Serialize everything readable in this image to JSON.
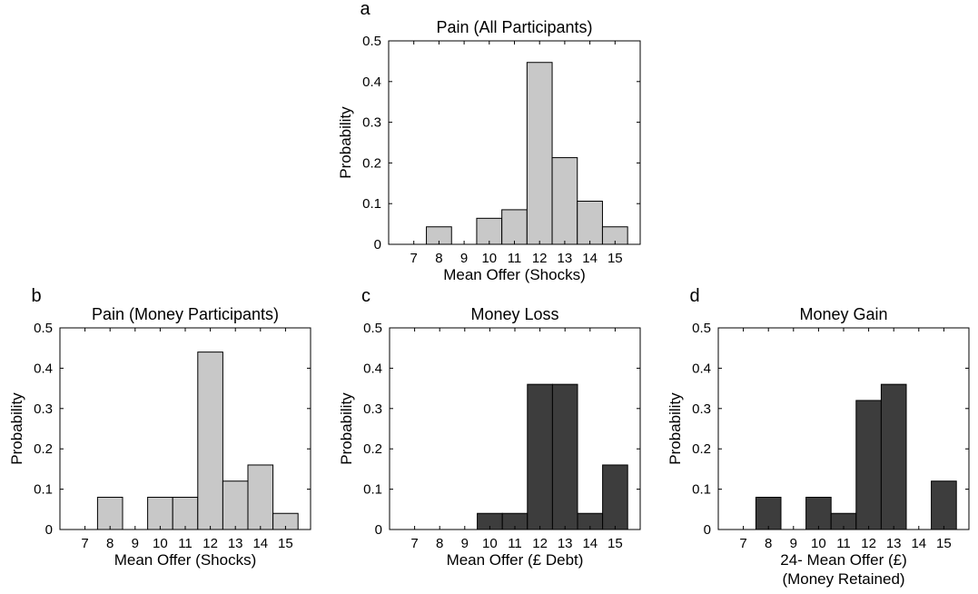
{
  "chart_data": [
    {
      "panel_letter": "a",
      "type": "bar",
      "title": "Pain (All Participants)",
      "xlabel": [
        "Mean Offer (Shocks)"
      ],
      "ylabel": "Probability",
      "categories": [
        "7",
        "8",
        "9",
        "10",
        "11",
        "12",
        "13",
        "14",
        "15"
      ],
      "values": [
        0,
        0.043,
        0,
        0.064,
        0.085,
        0.447,
        0.213,
        0.106,
        0.043
      ],
      "ylim": [
        0,
        0.5
      ],
      "yticks": [
        "0",
        "0.1",
        "0.2",
        "0.3",
        "0.4",
        "0.5"
      ],
      "bar_color": "#c8c8c8",
      "grid": false
    },
    {
      "panel_letter": "b",
      "type": "bar",
      "title": "Pain (Money Participants)",
      "xlabel": [
        "Mean Offer (Shocks)"
      ],
      "ylabel": "Probability",
      "categories": [
        "7",
        "8",
        "9",
        "10",
        "11",
        "12",
        "13",
        "14",
        "15"
      ],
      "values": [
        0,
        0.08,
        0,
        0.08,
        0.08,
        0.44,
        0.12,
        0.16,
        0.04
      ],
      "ylim": [
        0,
        0.5
      ],
      "yticks": [
        "0",
        "0.1",
        "0.2",
        "0.3",
        "0.4",
        "0.5"
      ],
      "bar_color": "#c8c8c8",
      "grid": false
    },
    {
      "panel_letter": "c",
      "type": "bar",
      "title": "Money Loss",
      "xlabel": [
        "Mean Offer (£ Debt)"
      ],
      "ylabel": "Probability",
      "categories": [
        "7",
        "8",
        "9",
        "10",
        "11",
        "12",
        "13",
        "14",
        "15"
      ],
      "values": [
        0,
        0,
        0,
        0.04,
        0.04,
        0.36,
        0.36,
        0.04,
        0.16
      ],
      "ylim": [
        0,
        0.5
      ],
      "yticks": [
        "0",
        "0.1",
        "0.2",
        "0.3",
        "0.4",
        "0.5"
      ],
      "bar_color": "#3d3d3d",
      "grid": false
    },
    {
      "panel_letter": "d",
      "type": "bar",
      "title": "Money Gain",
      "xlabel": [
        "24- Mean Offer (£)",
        "(Money Retained)"
      ],
      "ylabel": "Probability",
      "categories": [
        "7",
        "8",
        "9",
        "10",
        "11",
        "12",
        "13",
        "14",
        "15"
      ],
      "values": [
        0,
        0.08,
        0,
        0.08,
        0.04,
        0.32,
        0.36,
        0,
        0.12
      ],
      "ylim": [
        0,
        0.5
      ],
      "yticks": [
        "0",
        "0.1",
        "0.2",
        "0.3",
        "0.4",
        "0.5"
      ],
      "bar_color": "#3d3d3d",
      "grid": false
    }
  ]
}
